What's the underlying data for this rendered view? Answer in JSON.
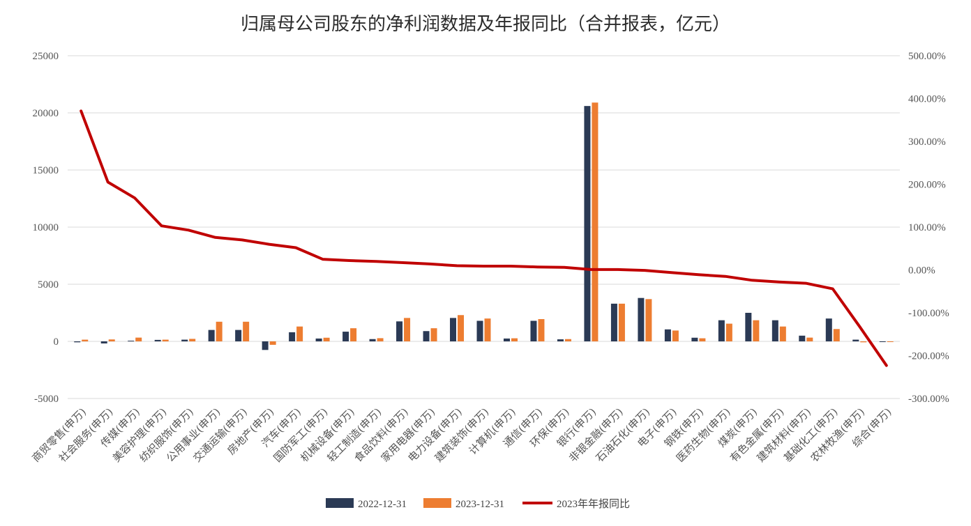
{
  "title": "归属母公司股东的净利润数据及年报同比（合并报表，亿元）",
  "colors": {
    "series_2022": "#2b3a55",
    "series_2023": "#ed7d31",
    "line": "#c00000",
    "grid": "#d9d9d9"
  },
  "chart_data": {
    "type": "bar",
    "title": "归属母公司股东的净利润数据及年报同比（合并报表，亿元）",
    "categories": [
      "商贸零售(申万)",
      "社会服务(申万)",
      "传媒(申万)",
      "美容护理(申万)",
      "纺织服饰(申万)",
      "公用事业(申万)",
      "交通运输(申万)",
      "房地产(申万)",
      "汽车(申万)",
      "国防军工(申万)",
      "机械设备(申万)",
      "轻工制造(申万)",
      "食品饮料(申万)",
      "家用电器(申万)",
      "电力设备(申万)",
      "建筑装饰(申万)",
      "计算机(申万)",
      "通信(申万)",
      "环保(申万)",
      "银行(申万)",
      "非银金融(申万)",
      "石油石化(申万)",
      "电子(申万)",
      "钢铁(申万)",
      "医药生物(申万)",
      "煤炭(申万)",
      "有色金属(申万)",
      "建筑材料(申万)",
      "基础化工(申万)",
      "农林牧渔(申万)",
      "综合(申万)"
    ],
    "series": [
      {
        "name": "2022-12-31",
        "axis": "left",
        "values": [
          -80,
          -180,
          60,
          130,
          150,
          1000,
          1000,
          -750,
          800,
          250,
          850,
          200,
          1750,
          900,
          2050,
          1800,
          250,
          1800,
          180,
          20600,
          3300,
          3800,
          1050,
          320,
          1850,
          2500,
          1850,
          500,
          2000,
          150,
          -20
        ]
      },
      {
        "name": "2023-12-31",
        "axis": "left",
        "values": [
          150,
          170,
          330,
          150,
          220,
          1720,
          1720,
          -300,
          1300,
          320,
          1150,
          280,
          2050,
          1150,
          2300,
          2000,
          270,
          1950,
          200,
          20900,
          3300,
          3700,
          950,
          270,
          1550,
          1850,
          1300,
          330,
          1080,
          -80,
          -50
        ]
      },
      {
        "name": "2023年年报同比",
        "axis": "right",
        "type": "line",
        "values": [
          371,
          205,
          168,
          103,
          93,
          76,
          70,
          60,
          52,
          25,
          22,
          20,
          17,
          14,
          10,
          9,
          9,
          7,
          6,
          1,
          1,
          -1,
          -6,
          -11,
          -15,
          -24,
          -28,
          -31,
          -44,
          -132,
          -223
        ]
      }
    ],
    "y_left": {
      "range": [
        -5000,
        25000
      ],
      "ticks": [
        "-5000",
        "0",
        "5000",
        "10000",
        "15000",
        "20000",
        "25000"
      ]
    },
    "y_right": {
      "range": [
        -300,
        500
      ],
      "ticks": [
        "-300.00%",
        "-200.00%",
        "-100.00%",
        "0.00%",
        "100.00%",
        "200.00%",
        "300.00%",
        "400.00%",
        "500.00%"
      ]
    },
    "grid": true,
    "legend": {
      "position": "bottom",
      "entries": [
        "2022-12-31",
        "2023-12-31",
        "2023年年报同比"
      ]
    }
  }
}
